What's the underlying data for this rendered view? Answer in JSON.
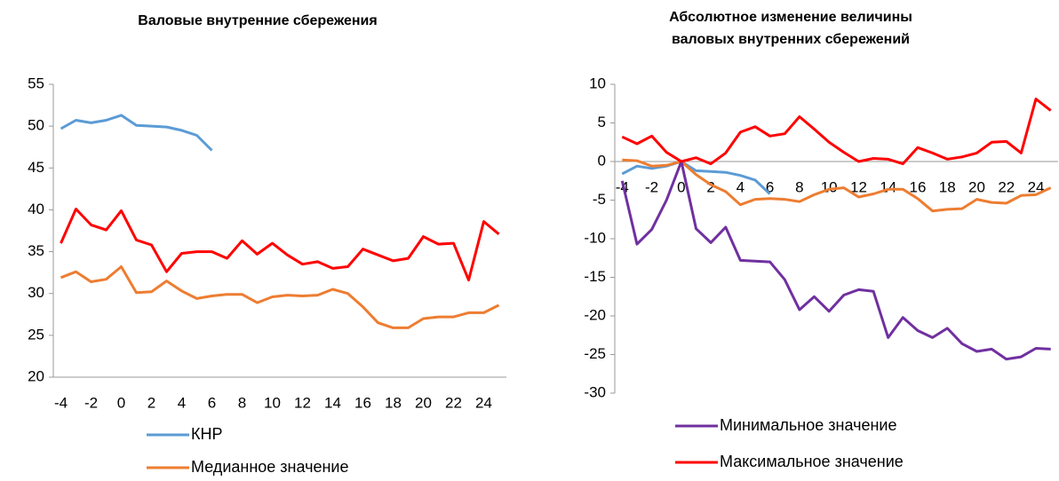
{
  "chart_data": [
    {
      "type": "line",
      "title": [
        "Валовые внутренние сбережения"
      ],
      "categories": [
        "-4",
        null,
        "-2",
        null,
        "0",
        null,
        "2",
        null,
        "4",
        null,
        "6",
        null,
        "8",
        null,
        "10",
        null,
        "12",
        null,
        "14",
        null,
        "16",
        null,
        "18",
        null,
        "20",
        null,
        "22",
        null,
        "24",
        null
      ],
      "ylim": [
        20,
        55
      ],
      "yticks": [
        20,
        25,
        30,
        35,
        40,
        45,
        50,
        55
      ],
      "series": [
        {
          "name": "КНР",
          "color": "#5b9bd5",
          "values": [
            49.7,
            50.7,
            50.4,
            50.7,
            51.3,
            50.1,
            50.0,
            49.9,
            49.5,
            48.9,
            47.1,
            null,
            null,
            null,
            null,
            null,
            null,
            null,
            null,
            null,
            null,
            null,
            null,
            null,
            null,
            null,
            null,
            null,
            null,
            null
          ]
        },
        {
          "name": "Медианное значение",
          "color": "#ed7d31",
          "values": [
            31.9,
            32.6,
            31.4,
            31.7,
            33.2,
            30.1,
            30.2,
            31.5,
            30.3,
            29.4,
            29.7,
            29.9,
            29.9,
            28.9,
            29.6,
            29.8,
            29.7,
            29.8,
            30.5,
            30.0,
            28.4,
            26.5,
            25.9,
            25.9,
            27.0,
            27.2,
            27.2,
            27.7,
            27.7,
            28.6
          ]
        },
        {
          "color": "#ff0000",
          "values": [
            36.0,
            40.1,
            38.2,
            37.6,
            39.9,
            36.4,
            35.8,
            32.6,
            34.8,
            35.0,
            35.0,
            34.2,
            36.3,
            34.7,
            36.0,
            34.6,
            33.5,
            33.8,
            33.0,
            33.2,
            35.3,
            34.6,
            33.9,
            34.2,
            36.8,
            35.9,
            36.0,
            31.6,
            38.6,
            37.1
          ]
        }
      ]
    },
    {
      "type": "line",
      "title": [
        "Абсолютное изменение величины",
        "валовых внутренних сбережений"
      ],
      "categories": [
        "-4",
        null,
        "-2",
        null,
        "0",
        null,
        "2",
        null,
        "4",
        null,
        "6",
        null,
        "8",
        null,
        "10",
        null,
        "12",
        null,
        "14",
        null,
        "16",
        null,
        "18",
        null,
        "20",
        null,
        "22",
        null,
        "24",
        null
      ],
      "ylim": [
        -30,
        10
      ],
      "yticks": [
        -30,
        -25,
        -20,
        -15,
        -10,
        -5,
        0,
        5,
        10
      ],
      "series": [
        {
          "color": "#5b9bd5",
          "values": [
            -1.6,
            -0.6,
            -0.9,
            -0.6,
            0,
            -1.2,
            -1.3,
            -1.4,
            -1.8,
            -2.4,
            -4.2,
            null,
            null,
            null,
            null,
            null,
            null,
            null,
            null,
            null,
            null,
            null,
            null,
            null,
            null,
            null,
            null,
            null,
            null,
            null
          ]
        },
        {
          "color": "#ed7d31",
          "values": [
            0.2,
            0.1,
            -0.6,
            -0.5,
            0,
            -1.7,
            -3.0,
            -3.9,
            -5.6,
            -4.9,
            -4.8,
            -4.9,
            -5.2,
            -4.3,
            -3.6,
            -3.4,
            -4.6,
            -4.2,
            -3.6,
            -3.6,
            -4.8,
            -6.4,
            -6.2,
            -6.1,
            -4.9,
            -5.3,
            -5.4,
            -4.4,
            -4.3,
            -3.4
          ]
        },
        {
          "name": "Минимальное значение",
          "color": "#7030a0",
          "values": [
            -2.5,
            -10.7,
            -8.8,
            -5.0,
            0,
            -8.7,
            -10.5,
            -8.5,
            -12.8,
            -12.9,
            -13.0,
            -15.3,
            -19.2,
            -17.5,
            -19.4,
            -17.3,
            -16.6,
            -16.8,
            -22.8,
            -20.2,
            -21.9,
            -22.8,
            -21.6,
            -23.6,
            -24.6,
            -24.3,
            -25.6,
            -25.3,
            -24.2,
            -24.3
          ]
        },
        {
          "name": "Максимальное значение",
          "color": "#ff0000",
          "values": [
            3.2,
            2.3,
            3.3,
            1.2,
            0,
            0.5,
            -0.3,
            1.1,
            3.8,
            4.5,
            3.3,
            3.6,
            5.8,
            4.2,
            2.5,
            1.2,
            0.0,
            0.4,
            0.3,
            -0.3,
            1.8,
            1.1,
            0.3,
            0.6,
            1.1,
            2.5,
            2.6,
            1.1,
            8.1,
            6.6
          ]
        }
      ]
    }
  ]
}
